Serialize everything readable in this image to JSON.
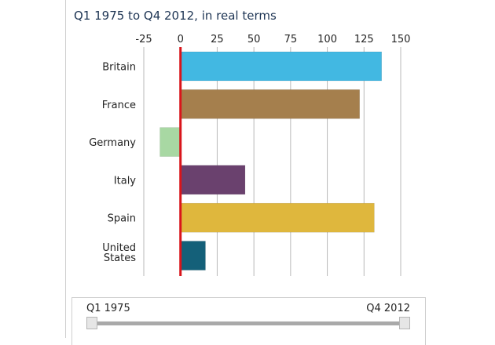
{
  "chart_data": {
    "type": "bar",
    "orientation": "horizontal",
    "subtitle": "Q1 1975 to Q4 2012, in real terms",
    "categories": [
      "Britain",
      "France",
      "Germany",
      "Italy",
      "Spain",
      "United States"
    ],
    "values": [
      137,
      122,
      -14,
      44,
      132,
      17
    ],
    "colors": [
      "#42b8e2",
      "#a57f4d",
      "#a8d8a3",
      "#6a416e",
      "#dfb73d",
      "#146079"
    ],
    "xlim": [
      -25,
      150
    ],
    "xticks": [
      "-25",
      "0",
      "25",
      "50",
      "75",
      "100",
      "125",
      "150"
    ],
    "grid": true,
    "zero_line_color": "#d9151b"
  },
  "slider": {
    "start_label": "Q1 1975",
    "end_label": "Q4 2012"
  }
}
